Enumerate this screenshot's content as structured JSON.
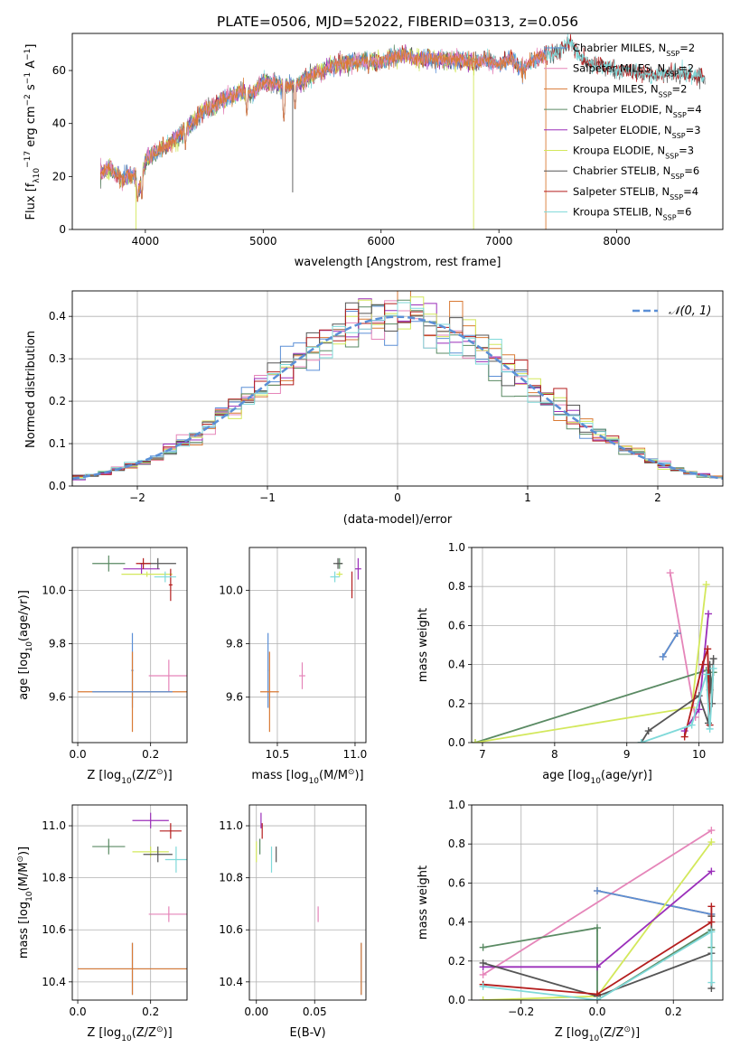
{
  "figure": {
    "title": "PLATE=0506, MJD=52022, FIBERID=0313, z=0.056",
    "colors": {
      "Chabrier MILES": "#5b8fd6",
      "Salpeter MILES": "#e585b9",
      "Kroupa MILES": "#d97a34",
      "Chabrier ELODIE": "#5a8a63",
      "Salpeter ELODIE": "#9b2fba",
      "Kroupa ELODIE": "#d3e85c",
      "Chabrier STELIB": "#555555",
      "Salpeter STELIB": "#b41e1e",
      "Kroupa STELIB": "#7fd9d9",
      "normal_curve": "#5b8fd6",
      "grid": "#b0b0b0"
    }
  },
  "chart_data": [
    {
      "id": "spectrum",
      "type": "line",
      "xlabel": "wavelength [Angstrom, rest frame]",
      "ylabel_parts": [
        "Flux [f",
        "λ",
        "10",
        "−17",
        " erg cm",
        "−2",
        " s",
        "−1",
        " A",
        "−1",
        "]"
      ],
      "xlim": [
        3380,
        8900
      ],
      "ylim": [
        0,
        74
      ],
      "xticks": [
        4000,
        5000,
        6000,
        7000,
        8000
      ],
      "yticks": [
        0,
        20,
        40,
        60
      ],
      "grid": false,
      "legend_position": "right",
      "series": [
        {
          "key": "Chabrier MILES",
          "name": "Chabrier MILES",
          "nssp": "2",
          "xmax": 7400
        },
        {
          "key": "Salpeter MILES",
          "name": "Salpeter MILES",
          "nssp": "2",
          "xmax": 7400
        },
        {
          "key": "Kroupa MILES",
          "name": "Kroupa MILES",
          "nssp": "2",
          "xmax": 7400
        },
        {
          "key": "Chabrier ELODIE",
          "name": "Chabrier ELODIE",
          "nssp": "4",
          "xmax": 6800
        },
        {
          "key": "Salpeter ELODIE",
          "name": "Salpeter ELODIE",
          "nssp": "3",
          "xmax": 6800
        },
        {
          "key": "Kroupa ELODIE",
          "name": "Kroupa ELODIE",
          "nssp": "3",
          "xmax": 6800
        },
        {
          "key": "Chabrier STELIB",
          "name": "Chabrier STELIB",
          "nssp": "6",
          "xmax": 8750
        },
        {
          "key": "Salpeter STELIB",
          "name": "Salpeter STELIB",
          "nssp": "4",
          "xmax": 8750
        },
        {
          "key": "Kroupa STELIB",
          "name": "Kroupa STELIB",
          "nssp": "6",
          "xmax": 8750
        }
      ],
      "continuum": [
        [
          3620,
          21
        ],
        [
          3700,
          23
        ],
        [
          3800,
          19
        ],
        [
          3900,
          21
        ],
        [
          3950,
          15
        ],
        [
          4000,
          26
        ],
        [
          4100,
          30
        ],
        [
          4200,
          32
        ],
        [
          4300,
          36
        ],
        [
          4400,
          40
        ],
        [
          4500,
          45
        ],
        [
          4600,
          47
        ],
        [
          4700,
          50
        ],
        [
          4800,
          52
        ],
        [
          4900,
          51
        ],
        [
          5000,
          56
        ],
        [
          5100,
          55
        ],
        [
          5200,
          54
        ],
        [
          5300,
          55
        ],
        [
          5400,
          58
        ],
        [
          5500,
          60
        ],
        [
          5600,
          62
        ],
        [
          5700,
          63
        ],
        [
          5800,
          63
        ],
        [
          5900,
          64
        ],
        [
          6000,
          63
        ],
        [
          6100,
          65
        ],
        [
          6200,
          66
        ],
        [
          6300,
          64
        ],
        [
          6400,
          65
        ],
        [
          6500,
          64
        ],
        [
          6600,
          64
        ],
        [
          6700,
          64
        ],
        [
          6800,
          63
        ],
        [
          6900,
          64
        ],
        [
          7000,
          62
        ],
        [
          7100,
          65
        ],
        [
          7200,
          60
        ],
        [
          7300,
          64
        ],
        [
          7400,
          66
        ],
        [
          7500,
          67
        ],
        [
          7600,
          71
        ],
        [
          7700,
          64
        ],
        [
          7800,
          63
        ],
        [
          7900,
          62
        ],
        [
          8000,
          60
        ],
        [
          8100,
          60
        ],
        [
          8200,
          59
        ],
        [
          8300,
          58
        ],
        [
          8400,
          59
        ],
        [
          8500,
          59
        ],
        [
          8600,
          58
        ],
        [
          8700,
          58
        ],
        [
          8750,
          57
        ]
      ],
      "absorption": [
        {
          "x": 3934,
          "y": 9
        },
        {
          "x": 3970,
          "y": 10
        },
        {
          "x": 4102,
          "y": 27
        },
        {
          "x": 4340,
          "y": 30
        },
        {
          "x": 4861,
          "y": 42
        },
        {
          "x": 5175,
          "y": 40
        },
        {
          "x": 5270,
          "y": 44
        },
        {
          "x": 5893,
          "y": 58
        }
      ],
      "spikes": [
        {
          "x": 5250,
          "y": 14,
          "key": "Chabrier STELIB"
        },
        {
          "x": 3920,
          "y": 0,
          "key": "Kroupa ELODIE"
        },
        {
          "x": 6785,
          "y": 0,
          "key": "Kroupa ELODIE"
        },
        {
          "x": 7398,
          "y": 0,
          "key": "Kroupa MILES"
        }
      ]
    },
    {
      "id": "residuals",
      "type": "line",
      "xlabel": "(data-model)/error",
      "ylabel": "Normed distribution",
      "xlim": [
        -2.5,
        2.5
      ],
      "ylim": [
        0,
        0.46
      ],
      "xticks": [
        -2,
        -1,
        0,
        1,
        2
      ],
      "yticks": [
        0.0,
        0.1,
        0.2,
        0.3,
        0.4
      ],
      "grid": true,
      "legend_position": "upper right",
      "normal_label": "N(0,1)",
      "bin_width": 0.1
    },
    {
      "id": "age_vs_Z",
      "type": "scatter",
      "xlabel_parts": [
        "Z [log",
        "10",
        "(Z/Z",
        "⊙",
        ")]"
      ],
      "ylabel_parts": [
        "age  [log",
        "10",
        "(age/yr)]"
      ],
      "xlim": [
        -0.015,
        0.3
      ],
      "ylim": [
        9.43,
        10.16
      ],
      "xticks": [
        0.0,
        0.2
      ],
      "yticks": [
        9.6,
        9.8,
        10.0
      ],
      "grid": true,
      "points": [
        {
          "key": "Chabrier MILES",
          "x": 0.15,
          "y": 9.7,
          "ex": 0.003,
          "ey": 0.14
        },
        {
          "key": "Salpeter MILES",
          "x": 0.25,
          "y": 9.68,
          "ex": 0.055,
          "ey": 0.06
        },
        {
          "key": "Kroupa MILES",
          "x": 0.15,
          "y": 9.62,
          "ex": 0.15,
          "ey": 0.15
        },
        {
          "key": "Chabrier ELODIE",
          "x": 0.085,
          "y": 10.1,
          "ex": 0.045,
          "ey": 0.03
        },
        {
          "key": "Salpeter ELODIE",
          "x": 0.175,
          "y": 10.08,
          "ex": 0.05,
          "ey": 0.02
        },
        {
          "key": "Kroupa ELODIE",
          "x": 0.19,
          "y": 10.06,
          "ex": 0.07,
          "ey": 0.01
        },
        {
          "key": "Chabrier STELIB",
          "x": 0.22,
          "y": 10.1,
          "ex": 0.05,
          "ey": 0.02
        },
        {
          "key": "Salpeter STELIB",
          "x": 0.255,
          "y": 10.02,
          "ex": 0.005,
          "ey": 0.06
        },
        {
          "key": "Kroupa STELIB",
          "x": 0.24,
          "y": 10.05,
          "ex": 0.03,
          "ey": 0.02
        },
        {
          "key": "Salpeter STELIB",
          "x": 0.18,
          "y": 10.1,
          "ex": 0.02,
          "ey": 0.02
        },
        {
          "key": "Chabrier MILES",
          "x": 0.15,
          "y": 9.62,
          "ex": 0.11,
          "ey": 0.0
        }
      ]
    },
    {
      "id": "age_vs_mass",
      "type": "scatter",
      "xlabel_parts": [
        "mass [log",
        "10",
        "(M/M",
        "⊙",
        ")]"
      ],
      "xlim": [
        10.32,
        11.07
      ],
      "ylim": [
        9.43,
        10.16
      ],
      "xticks": [
        10.5,
        11.0
      ],
      "yticks": [
        9.6,
        9.8,
        10.0
      ],
      "grid": true,
      "points": [
        {
          "key": "Chabrier MILES",
          "x": 10.44,
          "y": 9.7,
          "ex": 0.003,
          "ey": 0.14
        },
        {
          "key": "Kroupa MILES",
          "x": 10.45,
          "y": 9.62,
          "ex": 0.005,
          "ey": 0.15
        },
        {
          "key": "Kroupa MILES",
          "x": 10.45,
          "y": 9.62,
          "ex": 0.06,
          "ey": 0.0
        },
        {
          "key": "Salpeter MILES",
          "x": 10.66,
          "y": 9.68,
          "ex": 0.02,
          "ey": 0.05
        },
        {
          "key": "Chabrier ELODIE",
          "x": 10.9,
          "y": 10.1,
          "ex": 0.02,
          "ey": 0.02
        },
        {
          "key": "Salpeter ELODIE",
          "x": 11.02,
          "y": 10.08,
          "ex": 0.02,
          "ey": 0.04
        },
        {
          "key": "Kroupa ELODIE",
          "x": 10.9,
          "y": 10.06,
          "ex": 0.02,
          "ey": 0.01
        },
        {
          "key": "Chabrier STELIB",
          "x": 10.89,
          "y": 10.1,
          "ex": 0.03,
          "ey": 0.02
        },
        {
          "key": "Salpeter STELIB",
          "x": 10.98,
          "y": 10.02,
          "ex": 0.003,
          "ey": 0.05
        },
        {
          "key": "Kroupa STELIB",
          "x": 10.87,
          "y": 10.05,
          "ex": 0.03,
          "ey": 0.02
        }
      ]
    },
    {
      "id": "weight_vs_age",
      "type": "line",
      "xlabel_parts": [
        "age  [log",
        "10",
        "(age/yr)]"
      ],
      "ylabel": "mass weight",
      "xlim": [
        6.85,
        10.33
      ],
      "ylim": [
        0,
        1
      ],
      "xticks": [
        7,
        8,
        9,
        10
      ],
      "yticks": [
        0.0,
        0.2,
        0.4,
        0.6,
        0.8,
        1.0
      ],
      "grid": true,
      "series": [
        {
          "key": "Salpeter MILES",
          "x": [
            9.6,
            9.95
          ],
          "y": [
            0.87,
            0.13
          ]
        },
        {
          "key": "Kroupa MILES",
          "x": [
            9.5,
            9.7
          ],
          "y": [
            0.44,
            0.56
          ]
        },
        {
          "key": "Chabrier MILES",
          "x": [
            9.5,
            9.7
          ],
          "y": [
            0.44,
            0.56
          ]
        },
        {
          "key": "Chabrier ELODIE",
          "x": [
            6.9,
            10.1,
            10.15,
            10.2
          ],
          "y": [
            0.0,
            0.37,
            0.27,
            0.36
          ]
        },
        {
          "key": "Kroupa ELODIE",
          "x": [
            6.9,
            9.9,
            10.1
          ],
          "y": [
            0.0,
            0.18,
            0.81
          ]
        },
        {
          "key": "Salpeter ELODIE",
          "x": [
            9.8,
            10.0,
            10.13
          ],
          "y": [
            0.06,
            0.17,
            0.66
          ]
        },
        {
          "key": "Chabrier STELIB",
          "x": [
            9.2,
            9.3,
            10.0,
            10.13,
            10.15,
            10.18,
            10.2
          ],
          "y": [
            0.0,
            0.06,
            0.24,
            0.1,
            0.4,
            0.2,
            0.43
          ]
        },
        {
          "key": "Salpeter STELIB",
          "x": [
            9.8,
            10.05,
            10.12,
            10.15
          ],
          "y": [
            0.03,
            0.4,
            0.48,
            0.09
          ]
        },
        {
          "key": "Kroupa STELIB",
          "x": [
            9.2,
            9.9,
            10.1,
            10.15,
            10.2
          ],
          "y": [
            0.0,
            0.09,
            0.35,
            0.07,
            0.38
          ]
        }
      ]
    },
    {
      "id": "mass_vs_Z",
      "type": "scatter",
      "xlabel_parts": [
        "Z [log",
        "10",
        "(Z/Z",
        "⊙",
        ")]"
      ],
      "ylabel_parts": [
        "mass [log",
        "10",
        "(M/M",
        "⊙",
        ")]"
      ],
      "xlim": [
        -0.015,
        0.3
      ],
      "ylim": [
        10.33,
        11.08
      ],
      "xticks": [
        0.0,
        0.2
      ],
      "yticks": [
        10.4,
        10.6,
        10.8,
        11.0
      ],
      "grid": true,
      "points": [
        {
          "key": "Chabrier MILES",
          "x": 0.15,
          "y": 10.45,
          "ex": 0.15,
          "ey": 0.1
        },
        {
          "key": "Kroupa MILES",
          "x": 0.15,
          "y": 10.45,
          "ex": 0.15,
          "ey": 0.1
        },
        {
          "key": "Salpeter MILES",
          "x": 0.25,
          "y": 10.66,
          "ex": 0.055,
          "ey": 0.03
        },
        {
          "key": "Chabrier ELODIE",
          "x": 0.085,
          "y": 10.92,
          "ex": 0.045,
          "ey": 0.03
        },
        {
          "key": "Salpeter ELODIE",
          "x": 0.2,
          "y": 11.02,
          "ex": 0.05,
          "ey": 0.03
        },
        {
          "key": "Kroupa ELODIE",
          "x": 0.2,
          "y": 10.9,
          "ex": 0.05,
          "ey": 0.02
        },
        {
          "key": "Chabrier STELIB",
          "x": 0.22,
          "y": 10.89,
          "ex": 0.04,
          "ey": 0.03
        },
        {
          "key": "Salpeter STELIB",
          "x": 0.255,
          "y": 10.98,
          "ex": 0.03,
          "ey": 0.03
        },
        {
          "key": "Kroupa STELIB",
          "x": 0.27,
          "y": 10.87,
          "ex": 0.03,
          "ey": 0.05
        }
      ]
    },
    {
      "id": "mass_vs_ebv",
      "type": "scatter",
      "xlabel": "E(B-V)",
      "xlim": [
        -0.006,
        0.094
      ],
      "ylim": [
        10.33,
        11.08
      ],
      "xticks": [
        0.0,
        0.05
      ],
      "yticks": [
        10.4,
        10.6,
        10.8,
        11.0
      ],
      "grid": true,
      "points": [
        {
          "key": "Chabrier MILES",
          "x": 0.09,
          "y": 10.45,
          "ex": 0.0,
          "ey": 0.1
        },
        {
          "key": "Kroupa MILES",
          "x": 0.09,
          "y": 10.45,
          "ex": 0.0,
          "ey": 0.1
        },
        {
          "key": "Salpeter MILES",
          "x": 0.053,
          "y": 10.66,
          "ex": 0.0,
          "ey": 0.03
        },
        {
          "key": "Chabrier ELODIE",
          "x": 0.003,
          "y": 10.92,
          "ex": 0.0,
          "ey": 0.03
        },
        {
          "key": "Salpeter ELODIE",
          "x": 0.004,
          "y": 11.02,
          "ex": 0.0,
          "ey": 0.03
        },
        {
          "key": "Kroupa ELODIE",
          "x": 0.0,
          "y": 10.9,
          "ex": 0.0,
          "ey": 0.04
        },
        {
          "key": "Chabrier STELIB",
          "x": 0.017,
          "y": 10.89,
          "ex": 0.0,
          "ey": 0.03
        },
        {
          "key": "Salpeter STELIB",
          "x": 0.005,
          "y": 10.98,
          "ex": 0.0,
          "ey": 0.03
        },
        {
          "key": "Kroupa STELIB",
          "x": 0.013,
          "y": 10.87,
          "ex": 0.0,
          "ey": 0.05
        }
      ]
    },
    {
      "id": "weight_vs_Z",
      "type": "line",
      "xlabel_parts": [
        "Z [log",
        "10",
        "(Z/Z",
        "⊙",
        ")]"
      ],
      "ylabel": "mass weight",
      "xlim": [
        -0.33,
        0.33
      ],
      "ylim": [
        0,
        1
      ],
      "xticks": [
        -0.2,
        0.0,
        0.2
      ],
      "yticks": [
        0.0,
        0.2,
        0.4,
        0.6,
        0.8,
        1.0
      ],
      "grid": true,
      "series": [
        {
          "key": "Salpeter MILES",
          "x": [
            -0.3,
            0.3
          ],
          "y": [
            0.13,
            0.87
          ]
        },
        {
          "key": "Kroupa MILES",
          "x": [
            0.0,
            0.3
          ],
          "y": [
            0.56,
            0.44
          ]
        },
        {
          "key": "Chabrier MILES",
          "x": [
            0.0,
            0.3
          ],
          "y": [
            0.56,
            0.44
          ]
        },
        {
          "key": "Chabrier ELODIE",
          "x": [
            -0.3,
            0.0,
            0.0,
            0.3,
            0.3
          ],
          "y": [
            0.27,
            0.37,
            0.0,
            0.36,
            0.27
          ]
        },
        {
          "key": "Kroupa ELODIE",
          "x": [
            -0.3,
            0.0,
            0.3
          ],
          "y": [
            0.0,
            0.02,
            0.81
          ]
        },
        {
          "key": "Salpeter ELODIE",
          "x": [
            -0.3,
            0.0,
            0.3
          ],
          "y": [
            0.17,
            0.17,
            0.66
          ]
        },
        {
          "key": "Chabrier STELIB",
          "x": [
            -0.3,
            0.0,
            0.3,
            0.3,
            0.3
          ],
          "y": [
            0.19,
            0.02,
            0.24,
            0.06,
            0.43
          ]
        },
        {
          "key": "Salpeter STELIB",
          "x": [
            -0.3,
            0.0,
            0.3,
            0.3
          ],
          "y": [
            0.08,
            0.03,
            0.4,
            0.48
          ]
        },
        {
          "key": "Kroupa STELIB",
          "x": [
            -0.3,
            0.0,
            0.3,
            0.3
          ],
          "y": [
            0.07,
            0.0,
            0.35,
            0.09
          ]
        }
      ]
    }
  ]
}
